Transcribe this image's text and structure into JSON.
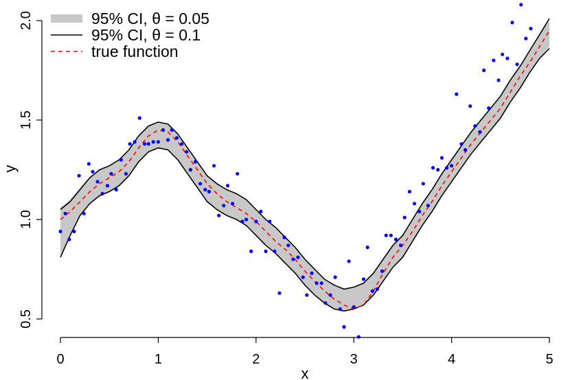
{
  "chart_data": {
    "type": "line",
    "xlabel": "x",
    "ylabel": "y",
    "xlim": [
      0,
      5
    ],
    "ylim": [
      0.5,
      2.0
    ],
    "x_ticks": [
      "0",
      "1",
      "2",
      "3",
      "4",
      "5"
    ],
    "y_ticks": [
      "0.5",
      "1.0",
      "1.5",
      "2.0"
    ],
    "grid": false,
    "legend_position": "top-left",
    "legend": [
      {
        "label": "95% CI, θ = 0.05",
        "style": "band",
        "color": "#c8c8c8"
      },
      {
        "label": "95% CI, θ = 0.1",
        "style": "solid",
        "color": "#000000"
      },
      {
        "label": "true function",
        "style": "dashed",
        "color": "#ff0000"
      }
    ],
    "colors": {
      "band": "#c8c8c8",
      "ci_lines": "#000000",
      "true_function": "#ff0000",
      "points": "#0000ff"
    },
    "series": [
      {
        "name": "95% CI, θ = 0.05",
        "kind": "band",
        "x": [
          0,
          0.1,
          0.2,
          0.3,
          0.4,
          0.5,
          0.6,
          0.7,
          0.8,
          0.9,
          1.0,
          1.1,
          1.2,
          1.3,
          1.4,
          1.5,
          1.6,
          1.7,
          1.8,
          1.9,
          2.0,
          2.1,
          2.2,
          2.3,
          2.4,
          2.5,
          2.6,
          2.7,
          2.8,
          2.9,
          3.0,
          3.1,
          3.2,
          3.3,
          3.4,
          3.5,
          3.6,
          3.7,
          3.8,
          3.9,
          4.0,
          4.1,
          4.2,
          4.3,
          4.4,
          4.5,
          4.6,
          4.7,
          4.8,
          4.9,
          5.0
        ],
        "upper": [
          1.06,
          1.1,
          1.16,
          1.21,
          1.25,
          1.27,
          1.3,
          1.35,
          1.42,
          1.47,
          1.49,
          1.48,
          1.43,
          1.36,
          1.29,
          1.22,
          1.18,
          1.15,
          1.13,
          1.1,
          1.05,
          1.0,
          0.96,
          0.91,
          0.86,
          0.8,
          0.75,
          0.7,
          0.67,
          0.65,
          0.66,
          0.68,
          0.73,
          0.8,
          0.87,
          0.92,
          1.0,
          1.08,
          1.15,
          1.23,
          1.3,
          1.37,
          1.44,
          1.5,
          1.56,
          1.62,
          1.7,
          1.77,
          1.85,
          1.93,
          2.0
        ],
        "lower": [
          0.82,
          0.92,
          1.02,
          1.08,
          1.12,
          1.14,
          1.17,
          1.22,
          1.29,
          1.34,
          1.36,
          1.35,
          1.3,
          1.23,
          1.16,
          1.09,
          1.05,
          1.02,
          1.0,
          0.97,
          0.92,
          0.87,
          0.83,
          0.78,
          0.73,
          0.67,
          0.62,
          0.58,
          0.55,
          0.54,
          0.55,
          0.57,
          0.62,
          0.69,
          0.76,
          0.81,
          0.89,
          0.97,
          1.04,
          1.12,
          1.19,
          1.26,
          1.33,
          1.39,
          1.45,
          1.51,
          1.59,
          1.66,
          1.74,
          1.81,
          1.87
        ]
      },
      {
        "name": "95% CI, θ = 0.1",
        "kind": "ci_lines",
        "x": [
          0,
          0.1,
          0.2,
          0.3,
          0.4,
          0.5,
          0.6,
          0.7,
          0.8,
          0.9,
          1.0,
          1.1,
          1.2,
          1.3,
          1.4,
          1.5,
          1.6,
          1.7,
          1.8,
          1.9,
          2.0,
          2.1,
          2.2,
          2.3,
          2.4,
          2.5,
          2.6,
          2.7,
          2.8,
          2.9,
          3.0,
          3.1,
          3.2,
          3.3,
          3.4,
          3.5,
          3.6,
          3.7,
          3.8,
          3.9,
          4.0,
          4.1,
          4.2,
          4.3,
          4.4,
          4.5,
          4.6,
          4.7,
          4.8,
          4.9,
          5.0
        ],
        "upper": [
          1.05,
          1.09,
          1.15,
          1.21,
          1.25,
          1.27,
          1.3,
          1.35,
          1.42,
          1.47,
          1.49,
          1.48,
          1.43,
          1.36,
          1.29,
          1.22,
          1.18,
          1.15,
          1.13,
          1.1,
          1.05,
          1.0,
          0.96,
          0.91,
          0.86,
          0.8,
          0.75,
          0.7,
          0.67,
          0.65,
          0.66,
          0.68,
          0.73,
          0.8,
          0.87,
          0.92,
          1.0,
          1.08,
          1.15,
          1.23,
          1.3,
          1.37,
          1.44,
          1.5,
          1.56,
          1.62,
          1.7,
          1.77,
          1.85,
          1.93,
          2.01
        ],
        "lower": [
          0.81,
          0.92,
          1.02,
          1.08,
          1.12,
          1.14,
          1.17,
          1.22,
          1.29,
          1.34,
          1.36,
          1.35,
          1.3,
          1.23,
          1.16,
          1.09,
          1.05,
          1.02,
          1.0,
          0.97,
          0.92,
          0.87,
          0.83,
          0.78,
          0.73,
          0.67,
          0.62,
          0.58,
          0.55,
          0.54,
          0.55,
          0.57,
          0.62,
          0.69,
          0.76,
          0.81,
          0.89,
          0.97,
          1.04,
          1.12,
          1.19,
          1.26,
          1.33,
          1.39,
          1.45,
          1.51,
          1.59,
          1.66,
          1.74,
          1.81,
          1.86
        ]
      },
      {
        "name": "true function",
        "kind": "dashed",
        "x": [
          0,
          0.1,
          0.2,
          0.3,
          0.4,
          0.5,
          0.6,
          0.7,
          0.8,
          0.9,
          1.0,
          1.1,
          1.2,
          1.3,
          1.4,
          1.5,
          1.6,
          1.7,
          1.8,
          1.9,
          2.0,
          2.1,
          2.2,
          2.3,
          2.4,
          2.5,
          2.6,
          2.7,
          2.8,
          2.9,
          3.0,
          3.1,
          3.2,
          3.3,
          3.4,
          3.5,
          3.6,
          3.7,
          3.8,
          3.9,
          4.0,
          4.1,
          4.2,
          4.3,
          4.4,
          4.5,
          4.6,
          4.7,
          4.8,
          4.9,
          5.0
        ],
        "values": [
          1.0,
          1.04,
          1.09,
          1.14,
          1.18,
          1.21,
          1.24,
          1.29,
          1.36,
          1.42,
          1.45,
          1.44,
          1.39,
          1.32,
          1.25,
          1.18,
          1.13,
          1.09,
          1.06,
          1.03,
          0.99,
          0.94,
          0.89,
          0.85,
          0.8,
          0.74,
          0.69,
          0.64,
          0.6,
          0.57,
          0.55,
          0.57,
          0.64,
          0.73,
          0.81,
          0.87,
          0.94,
          1.02,
          1.09,
          1.17,
          1.24,
          1.31,
          1.38,
          1.44,
          1.5,
          1.56,
          1.64,
          1.72,
          1.79,
          1.87,
          1.95
        ]
      },
      {
        "name": "observations",
        "kind": "scatter",
        "points": [
          [
            0.0,
            0.94
          ],
          [
            0.05,
            1.03
          ],
          [
            0.09,
            0.9
          ],
          [
            0.14,
            0.94
          ],
          [
            0.19,
            1.22
          ],
          [
            0.24,
            1.03
          ],
          [
            0.29,
            1.28
          ],
          [
            0.33,
            1.24
          ],
          [
            0.38,
            1.19
          ],
          [
            0.43,
            1.13
          ],
          [
            0.48,
            1.17
          ],
          [
            0.52,
            1.23
          ],
          [
            0.57,
            1.15
          ],
          [
            0.62,
            1.3
          ],
          [
            0.67,
            1.23
          ],
          [
            0.71,
            1.38
          ],
          [
            0.76,
            1.39
          ],
          [
            0.81,
            1.51
          ],
          [
            0.86,
            1.38
          ],
          [
            0.9,
            1.38
          ],
          [
            0.95,
            1.39
          ],
          [
            1.0,
            1.39
          ],
          [
            1.05,
            1.45
          ],
          [
            1.1,
            1.4
          ],
          [
            1.14,
            1.45
          ],
          [
            1.19,
            1.41
          ],
          [
            1.24,
            1.38
          ],
          [
            1.29,
            1.34
          ],
          [
            1.33,
            1.25
          ],
          [
            1.38,
            1.29
          ],
          [
            1.43,
            1.18
          ],
          [
            1.48,
            1.15
          ],
          [
            1.52,
            1.14
          ],
          [
            1.57,
            1.27
          ],
          [
            1.62,
            1.02
          ],
          [
            1.67,
            1.07
          ],
          [
            1.71,
            1.17
          ],
          [
            1.76,
            1.08
          ],
          [
            1.81,
            1.23
          ],
          [
            1.86,
            0.99
          ],
          [
            1.9,
            1.0
          ],
          [
            1.95,
            0.84
          ],
          [
            2.0,
            0.99
          ],
          [
            2.05,
            1.04
          ],
          [
            2.1,
            0.84
          ],
          [
            2.14,
            0.99
          ],
          [
            2.19,
            0.84
          ],
          [
            2.24,
            0.63
          ],
          [
            2.29,
            0.91
          ],
          [
            2.33,
            0.87
          ],
          [
            2.38,
            0.8
          ],
          [
            2.43,
            0.81
          ],
          [
            2.48,
            0.71
          ],
          [
            2.52,
            0.62
          ],
          [
            2.57,
            0.73
          ],
          [
            2.62,
            0.68
          ],
          [
            2.67,
            0.68
          ],
          [
            2.71,
            0.58
          ],
          [
            2.76,
            0.62
          ],
          [
            2.81,
            0.71
          ],
          [
            2.86,
            0.55
          ],
          [
            2.9,
            0.46
          ],
          [
            2.95,
            0.79
          ],
          [
            3.0,
            0.56
          ],
          [
            3.05,
            0.41
          ],
          [
            3.1,
            0.7
          ],
          [
            3.14,
            0.86
          ],
          [
            3.19,
            0.64
          ],
          [
            3.24,
            0.65
          ],
          [
            3.29,
            0.74
          ],
          [
            3.33,
            0.92
          ],
          [
            3.38,
            0.92
          ],
          [
            3.43,
            0.9
          ],
          [
            3.48,
            0.87
          ],
          [
            3.52,
            1.01
          ],
          [
            3.57,
            1.14
          ],
          [
            3.62,
            1.08
          ],
          [
            3.67,
            1.04
          ],
          [
            3.71,
            1.18
          ],
          [
            3.76,
            1.07
          ],
          [
            3.81,
            1.26
          ],
          [
            3.86,
            1.25
          ],
          [
            3.9,
            1.31
          ],
          [
            3.95,
            1.26
          ],
          [
            4.0,
            1.27
          ],
          [
            4.05,
            1.63
          ],
          [
            4.1,
            1.38
          ],
          [
            4.14,
            1.35
          ],
          [
            4.19,
            1.57
          ],
          [
            4.24,
            1.47
          ],
          [
            4.29,
            1.44
          ],
          [
            4.33,
            1.75
          ],
          [
            4.38,
            1.56
          ],
          [
            4.43,
            1.8
          ],
          [
            4.48,
            1.7
          ],
          [
            4.52,
            1.83
          ],
          [
            4.57,
            1.81
          ],
          [
            4.62,
            1.99
          ],
          [
            4.67,
            1.78
          ],
          [
            4.71,
            2.08
          ],
          [
            4.76,
            1.91
          ],
          [
            4.81,
            1.96
          ]
        ]
      }
    ]
  }
}
